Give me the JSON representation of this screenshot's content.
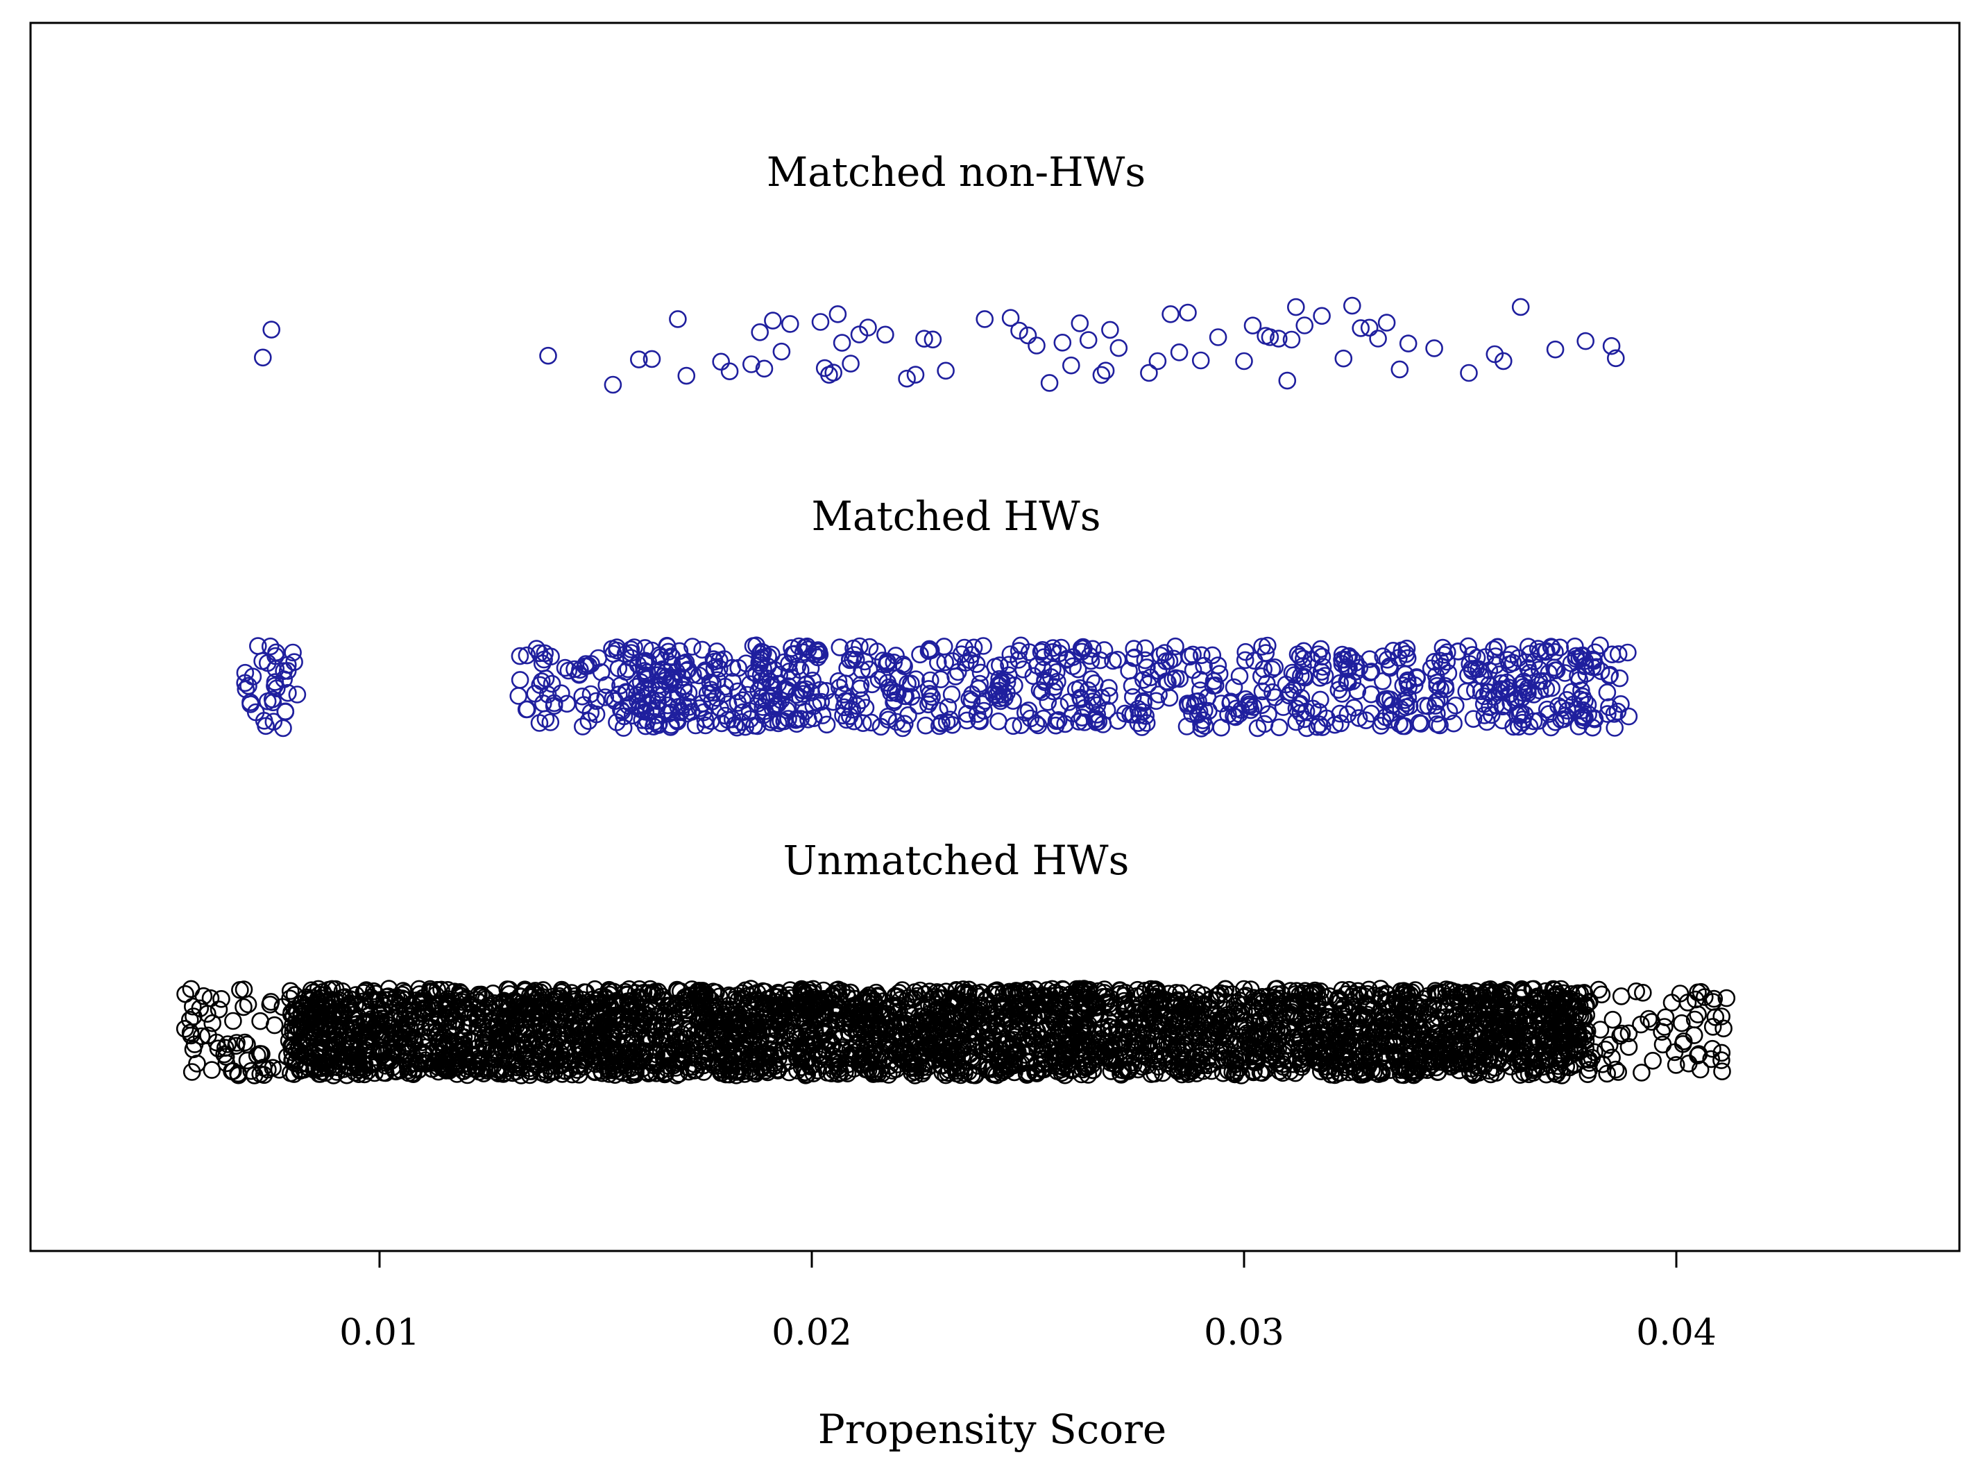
{
  "chart_data": {
    "type": "scatter",
    "subtype": "jitter strip plot",
    "title": "",
    "xlabel": "Propensity Score",
    "ylabel": "",
    "xlim": [
      0.002,
      0.0465
    ],
    "xticks": [
      0.01,
      0.02,
      0.03,
      0.04
    ],
    "xtick_labels": [
      "0.01",
      "0.02",
      "0.03",
      "0.04"
    ],
    "grid": false,
    "legend": "none",
    "marker": "open circle",
    "series": [
      {
        "name": "Matched non-HWs",
        "color": "#1f1f9e",
        "x": [
          0.0073,
          0.0075,
          0.0139,
          0.0154,
          0.016,
          0.0163,
          0.0169,
          0.0171,
          0.0179,
          0.0181,
          0.0186,
          0.0188,
          0.0189,
          0.0191,
          0.0193,
          0.0195,
          0.0202,
          0.0203,
          0.0204,
          0.0205,
          0.0206,
          0.0207,
          0.0209,
          0.0211,
          0.0213,
          0.0217,
          0.0222,
          0.0224,
          0.0226,
          0.0228,
          0.0231,
          0.024,
          0.0246,
          0.0248,
          0.025,
          0.0252,
          0.0255,
          0.0258,
          0.026,
          0.0262,
          0.0264,
          0.0267,
          0.0268,
          0.0269,
          0.0271,
          0.0278,
          0.028,
          0.0283,
          0.0285,
          0.0287,
          0.029,
          0.0294,
          0.03,
          0.0302,
          0.0305,
          0.0306,
          0.0308,
          0.031,
          0.0311,
          0.0312,
          0.0314,
          0.0318,
          0.0323,
          0.0325,
          0.0327,
          0.0329,
          0.0331,
          0.0333,
          0.0336,
          0.0338,
          0.0344,
          0.0352,
          0.0358,
          0.036,
          0.0364,
          0.0372,
          0.0379,
          0.0385,
          0.0386
        ],
        "n_points": 79
      },
      {
        "name": "Matched HWs",
        "color": "#1f1f9e",
        "x_range": [
          0.0068,
          0.0389
        ],
        "clusters": [
          0.0073,
          0.014,
          0.0155,
          0.0162,
          0.0168,
          0.0172,
          0.0183,
          0.019,
          0.0195,
          0.0205,
          0.0215,
          0.0225,
          0.0238,
          0.025,
          0.026,
          0.027,
          0.0283,
          0.0295,
          0.0308,
          0.032,
          0.033,
          0.034,
          0.0352,
          0.036,
          0.0366,
          0.0375,
          0.0385
        ],
        "n_points": 1000
      },
      {
        "name": "Unmatched HWs",
        "color": "#000000",
        "x_range": [
          0.0055,
          0.0412
        ],
        "dense_range": [
          0.0079,
          0.038
        ],
        "n_points": 4000
      }
    ]
  }
}
